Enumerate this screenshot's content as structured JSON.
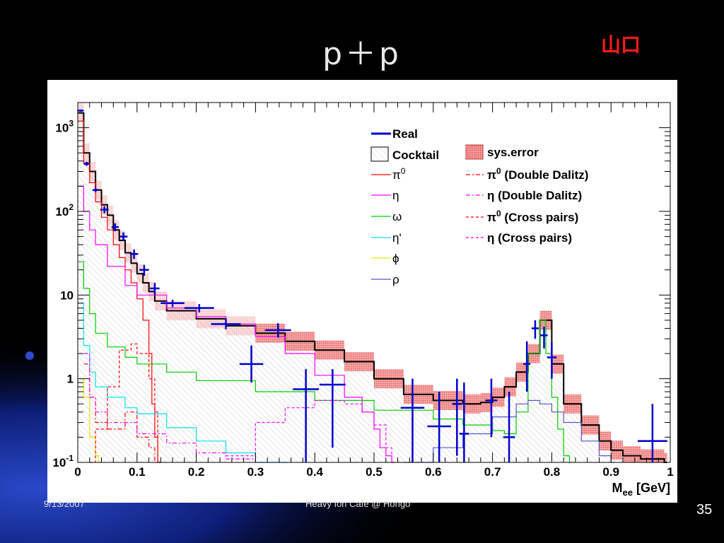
{
  "slide": {
    "title": "p＋p",
    "author": "山口",
    "footer_left": "9/13/2007",
    "footer_center": "Heavy Ion Cafe @ Hongo",
    "page_number": "35"
  },
  "chart_data": {
    "type": "line",
    "xlabel": "M",
    "xlabel_sub": "ee",
    "xlabel_unit": "[GeV]",
    "xlim": [
      0,
      1
    ],
    "ylim": [
      0.1,
      2000
    ],
    "yscale": "log",
    "x_ticks": [
      "0",
      "0.1",
      "0.2",
      "0.3",
      "0.4",
      "0.5",
      "0.6",
      "0.7",
      "0.8",
      "0.9",
      "1"
    ],
    "y_ticks": [
      {
        "value": 1000,
        "base": "10",
        "exp": "3"
      },
      {
        "value": 100,
        "base": "10",
        "exp": "2"
      },
      {
        "value": 10,
        "base": "10",
        "exp": ""
      },
      {
        "value": 1,
        "base": "1",
        "exp": ""
      },
      {
        "value": 0.1,
        "base": "10",
        "exp": "-1"
      }
    ],
    "grid": false,
    "legend_position": "top-right",
    "legend": [
      {
        "label": "Real",
        "color": "#0000cc",
        "style": "thick"
      },
      {
        "label": "Cocktail",
        "color": "#000000",
        "style": "box"
      },
      {
        "label": "π",
        "sup": "0",
        "color": "#ff0000",
        "style": "solid"
      },
      {
        "label": "η",
        "color": "#ff00ff",
        "style": "solid"
      },
      {
        "label": "ω",
        "color": "#00cc00",
        "style": "solid"
      },
      {
        "label": "η'",
        "color": "#00e5ee",
        "style": "solid"
      },
      {
        "label": "ϕ",
        "color": "#e6e600",
        "style": "solid"
      },
      {
        "label": "ρ",
        "color": "#5555cc",
        "style": "solid"
      },
      {
        "label": "sys.error",
        "color": "#ee6666",
        "style": "errbox"
      },
      {
        "label": "π",
        "sup": "0",
        "suffix": " (Double Dalitz)",
        "color": "#ff0000",
        "style": "dashdot"
      },
      {
        "label": "η",
        "suffix": " (Double Dalitz)",
        "color": "#ff00ff",
        "style": "dashdot"
      },
      {
        "label": "π",
        "sup": "0",
        "suffix": " (Cross pairs)",
        "color": "#ff0000",
        "style": "dashed"
      },
      {
        "label": "η",
        "suffix": " (Cross pairs)",
        "color": "#ff00ff",
        "style": "dashed"
      }
    ],
    "series": [
      {
        "name": "Cocktail",
        "color": "#000000",
        "x": [
          0.0,
          0.01,
          0.02,
          0.03,
          0.04,
          0.05,
          0.06,
          0.07,
          0.08,
          0.09,
          0.1,
          0.11,
          0.12,
          0.13,
          0.15,
          0.2,
          0.25,
          0.3,
          0.35,
          0.4,
          0.45,
          0.5,
          0.55,
          0.6,
          0.65,
          0.68,
          0.7,
          0.72,
          0.74,
          0.76,
          0.78,
          0.8,
          0.82,
          0.85,
          0.88,
          0.9,
          0.92,
          0.95,
          0.99
        ],
        "y": [
          1500,
          500,
          300,
          180,
          120,
          90,
          60,
          45,
          32,
          24,
          18,
          14,
          11,
          8.5,
          6.5,
          5.2,
          4.3,
          3.5,
          2.8,
          2.2,
          1.6,
          1.0,
          0.65,
          0.55,
          0.5,
          0.52,
          0.6,
          0.8,
          1.2,
          2.0,
          5.0,
          1.5,
          0.5,
          0.28,
          0.18,
          0.14,
          0.12,
          0.11,
          0.1
        ]
      },
      {
        "name": "π",
        "color": "#ff0000",
        "x": [
          0.0,
          0.01,
          0.02,
          0.03,
          0.04,
          0.05,
          0.06,
          0.07,
          0.08,
          0.09,
          0.1,
          0.11,
          0.12,
          0.125,
          0.13,
          0.135
        ],
        "y": [
          1200,
          380,
          220,
          130,
          85,
          60,
          40,
          28,
          20,
          14,
          9,
          5,
          2,
          0.5,
          0.2,
          0.1
        ]
      },
      {
        "name": "η",
        "color": "#ff00ff",
        "x": [
          0.0,
          0.01,
          0.02,
          0.03,
          0.05,
          0.08,
          0.1,
          0.15,
          0.2,
          0.25,
          0.3,
          0.35,
          0.4,
          0.45,
          0.48,
          0.5,
          0.51,
          0.52,
          0.53
        ],
        "y": [
          200,
          100,
          60,
          40,
          22,
          13,
          10,
          7,
          5.5,
          4.5,
          3.2,
          2.0,
          1.1,
          0.6,
          0.4,
          0.25,
          0.15,
          0.12,
          0.1
        ]
      },
      {
        "name": "ω",
        "color": "#00cc00",
        "x": [
          0.0,
          0.01,
          0.02,
          0.03,
          0.05,
          0.08,
          0.1,
          0.15,
          0.2,
          0.3,
          0.4,
          0.5,
          0.6,
          0.65,
          0.7,
          0.72,
          0.73,
          0.74,
          0.76,
          0.78,
          0.79,
          0.8,
          0.81,
          0.82,
          0.83
        ],
        "y": [
          25,
          12,
          6,
          3.5,
          2.4,
          1.8,
          1.5,
          1.2,
          0.95,
          0.7,
          0.55,
          0.42,
          0.33,
          0.28,
          0.24,
          0.22,
          0.22,
          0.4,
          2.0,
          5.0,
          2.0,
          0.6,
          0.25,
          0.12,
          0.1
        ]
      },
      {
        "name": "η'",
        "color": "#00e5ee",
        "x": [
          0.0,
          0.01,
          0.02,
          0.03,
          0.05,
          0.08,
          0.1,
          0.15,
          0.2,
          0.25,
          0.3,
          0.35
        ],
        "y": [
          8,
          2.5,
          1.2,
          0.8,
          0.6,
          0.45,
          0.38,
          0.26,
          0.18,
          0.13,
          0.1,
          0.08
        ]
      },
      {
        "name": "ϕ",
        "color": "#e6e600",
        "x": [
          0.0,
          0.01,
          0.02,
          0.03,
          0.035
        ],
        "y": [
          1.0,
          0.6,
          0.2,
          0.12,
          0.1
        ]
      },
      {
        "name": "ρ",
        "color": "#5555cc",
        "x": [
          0.55,
          0.6,
          0.65,
          0.7,
          0.74,
          0.76,
          0.78,
          0.8,
          0.82,
          0.85,
          0.88,
          0.9
        ],
        "y": [
          0.1,
          0.15,
          0.22,
          0.35,
          0.5,
          0.55,
          0.5,
          0.4,
          0.3,
          0.18,
          0.12,
          0.1
        ]
      },
      {
        "name": "π Double Dalitz",
        "color": "#ff0000",
        "dash": "6,3,2,3",
        "x": [
          0.01,
          0.02,
          0.03,
          0.05,
          0.08,
          0.1,
          0.12,
          0.13,
          0.135
        ],
        "y": [
          1.5,
          0.6,
          0.3,
          0.25,
          0.4,
          0.2,
          0.15,
          0.1,
          0.08
        ]
      },
      {
        "name": "η Double Dalitz",
        "color": "#ff00ff",
        "dash": "6,3,2,3",
        "x": [
          0.01,
          0.02,
          0.03,
          0.05,
          0.1,
          0.15,
          0.2,
          0.25,
          0.3
        ],
        "y": [
          2.0,
          0.6,
          0.4,
          0.3,
          0.22,
          0.17,
          0.13,
          0.11,
          0.1
        ]
      },
      {
        "name": "π Cross pairs",
        "color": "#ff0000",
        "dash": "4,3",
        "x": [
          0.02,
          0.03,
          0.05,
          0.07,
          0.09,
          0.1,
          0.12,
          0.13,
          0.135
        ],
        "y": [
          0.1,
          0.25,
          0.8,
          2.2,
          2.6,
          2.0,
          1.0,
          0.4,
          0.1
        ]
      },
      {
        "name": "η Cross pairs",
        "color": "#ff00ff",
        "dash": "4,3",
        "x": [
          0.25,
          0.3,
          0.35,
          0.4,
          0.45,
          0.48,
          0.5,
          0.52,
          0.53
        ],
        "y": [
          0.12,
          0.3,
          0.45,
          0.55,
          0.5,
          0.4,
          0.28,
          0.15,
          0.1
        ]
      }
    ],
    "real_data": {
      "name": "Real",
      "color": "#0000cc",
      "points": [
        {
          "x": 0.005,
          "y": 1600,
          "xerr": 0.005,
          "ylo": 1550,
          "yhi": 1650
        },
        {
          "x": 0.015,
          "y": 370,
          "xerr": 0.005,
          "ylo": 350,
          "yhi": 390
        },
        {
          "x": 0.03,
          "y": 180,
          "xerr": 0.005,
          "ylo": 170,
          "yhi": 190
        },
        {
          "x": 0.045,
          "y": 105,
          "xerr": 0.007,
          "ylo": 95,
          "yhi": 115
        },
        {
          "x": 0.063,
          "y": 65,
          "xerr": 0.006,
          "ylo": 58,
          "yhi": 72
        },
        {
          "x": 0.077,
          "y": 50,
          "xerr": 0.007,
          "ylo": 45,
          "yhi": 56
        },
        {
          "x": 0.095,
          "y": 31,
          "xerr": 0.007,
          "ylo": 27,
          "yhi": 35
        },
        {
          "x": 0.112,
          "y": 20,
          "xerr": 0.008,
          "ylo": 17,
          "yhi": 23
        },
        {
          "x": 0.13,
          "y": 12,
          "xerr": 0.008,
          "ylo": 10,
          "yhi": 14
        },
        {
          "x": 0.16,
          "y": 8.0,
          "xerr": 0.02,
          "ylo": 7.2,
          "yhi": 8.8
        },
        {
          "x": 0.205,
          "y": 7.0,
          "xerr": 0.025,
          "ylo": 6.2,
          "yhi": 7.8
        },
        {
          "x": 0.25,
          "y": 4.5,
          "xerr": 0.025,
          "ylo": 3.9,
          "yhi": 5.2
        },
        {
          "x": 0.293,
          "y": 1.5,
          "xerr": 0.02,
          "ylo": 0.9,
          "yhi": 2.5
        },
        {
          "x": 0.338,
          "y": 3.8,
          "xerr": 0.022,
          "ylo": 3.1,
          "yhi": 4.6
        },
        {
          "x": 0.385,
          "y": 0.75,
          "xerr": 0.022,
          "ylo": 0.1,
          "yhi": 1.3
        },
        {
          "x": 0.43,
          "y": 0.85,
          "xerr": 0.022,
          "ylo": 0.15,
          "yhi": 1.3
        },
        {
          "x": 0.565,
          "y": 0.45,
          "xerr": 0.02,
          "ylo": 0.1,
          "yhi": 1.0
        },
        {
          "x": 0.61,
          "y": 0.27,
          "xerr": 0.02,
          "ylo": 0.1,
          "yhi": 0.7
        },
        {
          "x": 0.64,
          "y": 0.5,
          "xerr": 0.008,
          "ylo": 0.12,
          "yhi": 1.0
        },
        {
          "x": 0.652,
          "y": 0.22,
          "xerr": 0.008,
          "ylo": 0.1,
          "yhi": 0.9
        },
        {
          "x": 0.698,
          "y": 0.55,
          "xerr": 0.01,
          "ylo": 0.2,
          "yhi": 1.0
        },
        {
          "x": 0.728,
          "y": 0.2,
          "xerr": 0.01,
          "ylo": 0.1,
          "yhi": 0.7
        },
        {
          "x": 0.758,
          "y": 1.5,
          "xerr": 0.006,
          "ylo": 0.7,
          "yhi": 2.8
        },
        {
          "x": 0.772,
          "y": 4.0,
          "xerr": 0.006,
          "ylo": 3.0,
          "yhi": 5.0
        },
        {
          "x": 0.787,
          "y": 3.3,
          "xerr": 0.006,
          "ylo": 2.3,
          "yhi": 4.2
        },
        {
          "x": 0.8,
          "y": 1.8,
          "xerr": 0.008,
          "ylo": 1.0,
          "yhi": 2.7
        },
        {
          "x": 0.97,
          "y": 0.18,
          "xerr": 0.025,
          "ylo": 0.1,
          "yhi": 0.5
        }
      ]
    }
  }
}
